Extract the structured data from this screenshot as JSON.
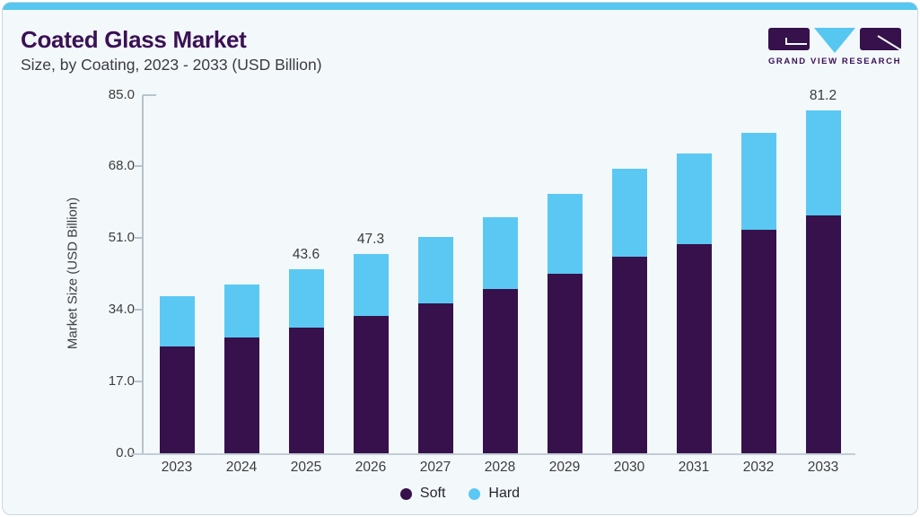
{
  "header": {
    "title": "Coated Glass Market",
    "subtitle": "Size, by Coating, 2023 - 2033 (USD Billion)"
  },
  "logo": {
    "brand": "GRAND VIEW RESEARCH"
  },
  "chart_data": {
    "type": "bar",
    "stacked": true,
    "title": "Coated Glass Market Size, by Coating, 2023 - 2033 (USD Billion)",
    "categories": [
      "2023",
      "2024",
      "2025",
      "2026",
      "2027",
      "2028",
      "2029",
      "2030",
      "2031",
      "2032",
      "2033"
    ],
    "series": [
      {
        "name": "Soft",
        "color": "#36114C",
        "values": [
          25.3,
          27.4,
          29.8,
          32.6,
          35.6,
          38.9,
          42.6,
          46.7,
          49.6,
          53.0,
          56.4
        ]
      },
      {
        "name": "Hard",
        "color": "#5BC8F3",
        "values": [
          11.9,
          12.6,
          13.8,
          14.7,
          15.7,
          17.1,
          18.8,
          20.7,
          21.5,
          23.0,
          24.8
        ]
      }
    ],
    "totals": [
      37.2,
      40.0,
      43.6,
      47.3,
      51.3,
      56.0,
      61.4,
      67.4,
      71.1,
      76.0,
      81.2
    ],
    "value_labels": {
      "2025": "43.6",
      "2026": "47.3",
      "2033": "81.2"
    },
    "xlabel": "",
    "ylabel": "Market Size (USD Billion)",
    "yticks": [
      "0.0",
      "17.0",
      "34.0",
      "51.0",
      "68.0",
      "85.0"
    ],
    "ylim": [
      0,
      85
    ],
    "grid": false,
    "legend_position": "bottom"
  },
  "legend": {
    "items": [
      {
        "label": "Soft",
        "color": "#36114C"
      },
      {
        "label": "Hard",
        "color": "#5BC8F3"
      }
    ]
  },
  "colors": {
    "bar_soft": "#36114C",
    "bar_hard": "#5BC8F3",
    "accent_strip": "#56C7F0",
    "title_text": "#3A1155",
    "card_background": "#F3F8FB",
    "axis_line": "#B7C3CB"
  }
}
